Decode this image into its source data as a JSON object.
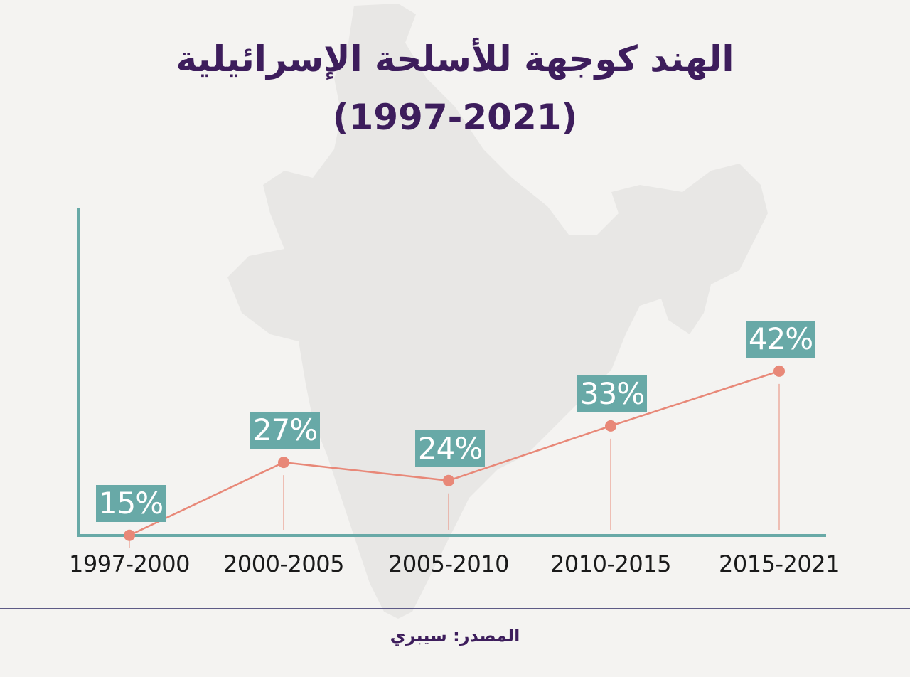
{
  "title": {
    "line1": "الهند كوجهة للأسلحة الإسرائيلية",
    "line2": "(1997-2021)"
  },
  "source": "المصدر: سيبري",
  "colors": {
    "title": "#3d1d5c",
    "axis": "#68a9a7",
    "line": "#e88878",
    "label_box": "#68a9a7",
    "background": "#f4f3f1",
    "map": "#e8e7e5"
  },
  "chart_data": {
    "type": "line",
    "title": "الهند كوجهة للأسلحة الإسرائيلية (1997-2021)",
    "categories": [
      "1997-2000",
      "2000-2005",
      "2005-2010",
      "2010-2015",
      "2015-2021"
    ],
    "values": [
      15,
      27,
      24,
      33,
      42
    ],
    "value_labels": [
      "15%",
      "27%",
      "24%",
      "33%",
      "42%"
    ],
    "unit": "%",
    "ylim": [
      0,
      50
    ],
    "xlabel": "",
    "ylabel": "",
    "grid": false,
    "legend": "none"
  }
}
